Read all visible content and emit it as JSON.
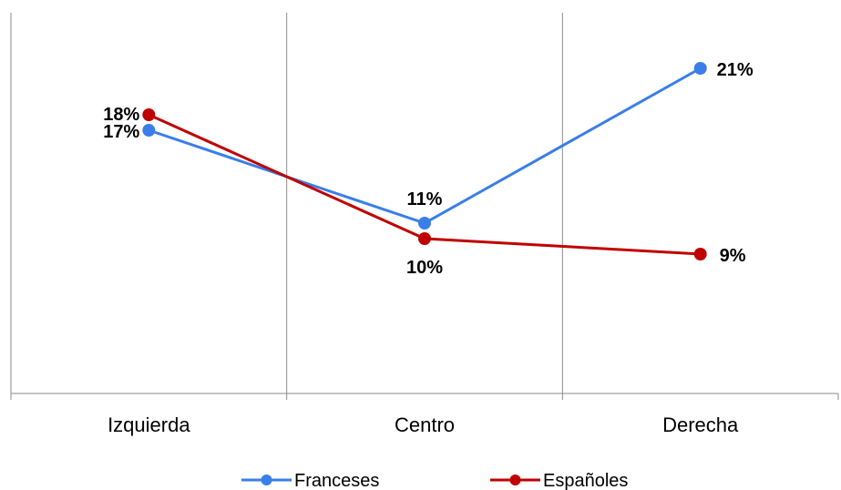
{
  "chart_data": {
    "type": "line",
    "categories": [
      "Izquierda",
      "Centro",
      "Derecha"
    ],
    "series": [
      {
        "name": "Franceses",
        "values": [
          17,
          11,
          21
        ],
        "labels": [
          "17%",
          "11%",
          "21%"
        ],
        "color": "#3a7ee8"
      },
      {
        "name": "Españoles",
        "values": [
          18,
          10,
          9
        ],
        "labels": [
          "18%",
          "10%",
          "9%"
        ],
        "color": "#c00000"
      }
    ],
    "ylim": [
      0,
      25
    ],
    "grid": "vertical",
    "legend_position": "bottom",
    "axis_color": "#8c8c8c"
  }
}
